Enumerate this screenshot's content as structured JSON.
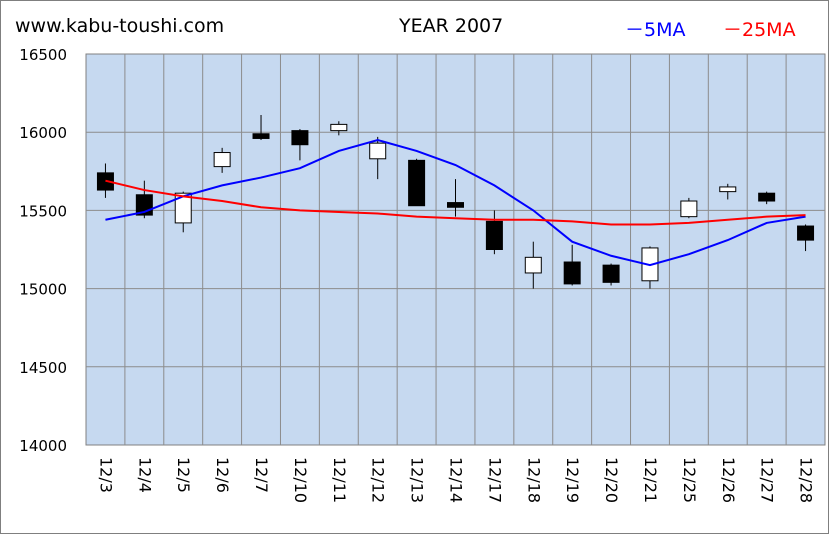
{
  "header": {
    "site": "www.kabu-toushi.com",
    "title": "YEAR 2007",
    "legend_5ma": "－5MA",
    "legend_25ma": "－25MA"
  },
  "colors": {
    "plot_bg": "#c6d9f0",
    "grid": "#8c8c8c",
    "ma5": "#0000ff",
    "ma25": "#ff0000",
    "up_candle": "#ffffff",
    "down_candle": "#000000"
  },
  "chart_data": {
    "type": "candlestick",
    "title": "YEAR 2007",
    "ylim": [
      14000,
      16500
    ],
    "yticks": [
      14000,
      14500,
      15000,
      15500,
      16000,
      16500
    ],
    "grid": true,
    "legend_position": "top-right",
    "categories": [
      "12/3",
      "12/4",
      "12/5",
      "12/6",
      "12/7",
      "12/10",
      "12/11",
      "12/12",
      "12/13",
      "12/14",
      "12/17",
      "12/18",
      "12/19",
      "12/20",
      "12/21",
      "12/25",
      "12/26",
      "12/27",
      "12/28"
    ],
    "candles": [
      {
        "open": 15740,
        "high": 15800,
        "low": 15580,
        "close": 15630
      },
      {
        "open": 15600,
        "high": 15690,
        "low": 15450,
        "close": 15470
      },
      {
        "open": 15420,
        "high": 15620,
        "low": 15360,
        "close": 15610
      },
      {
        "open": 15780,
        "high": 15900,
        "low": 15740,
        "close": 15870
      },
      {
        "open": 15990,
        "high": 16110,
        "low": 15950,
        "close": 15960
      },
      {
        "open": 16010,
        "high": 16020,
        "low": 15820,
        "close": 15920
      },
      {
        "open": 16010,
        "high": 16070,
        "low": 15980,
        "close": 16050
      },
      {
        "open": 15830,
        "high": 15970,
        "low": 15700,
        "close": 15930
      },
      {
        "open": 15820,
        "high": 15830,
        "low": 15530,
        "close": 15530
      },
      {
        "open": 15550,
        "high": 15700,
        "low": 15460,
        "close": 15520
      },
      {
        "open": 15430,
        "high": 15500,
        "low": 15220,
        "close": 15250
      },
      {
        "open": 15100,
        "high": 15300,
        "low": 15000,
        "close": 15200
      },
      {
        "open": 15170,
        "high": 15280,
        "low": 15020,
        "close": 15030
      },
      {
        "open": 15150,
        "high": 15160,
        "low": 15020,
        "close": 15040
      },
      {
        "open": 15050,
        "high": 15270,
        "low": 15000,
        "close": 15260
      },
      {
        "open": 15460,
        "high": 15580,
        "low": 15450,
        "close": 15560
      },
      {
        "open": 15620,
        "high": 15670,
        "low": 15570,
        "close": 15650
      },
      {
        "open": 15610,
        "high": 15620,
        "low": 15540,
        "close": 15560
      },
      {
        "open": 15400,
        "high": 15410,
        "low": 15240,
        "close": 15310
      }
    ],
    "series": [
      {
        "name": "5MA",
        "values": [
          15440,
          15490,
          15590,
          15660,
          15710,
          15770,
          15880,
          15950,
          15880,
          15790,
          15660,
          15500,
          15300,
          15210,
          15150,
          15220,
          15310,
          15420,
          15460
        ]
      },
      {
        "name": "25MA",
        "values": [
          15690,
          15630,
          15590,
          15560,
          15520,
          15500,
          15490,
          15480,
          15460,
          15450,
          15440,
          15440,
          15430,
          15410,
          15410,
          15420,
          15440,
          15460,
          15470
        ]
      }
    ]
  }
}
